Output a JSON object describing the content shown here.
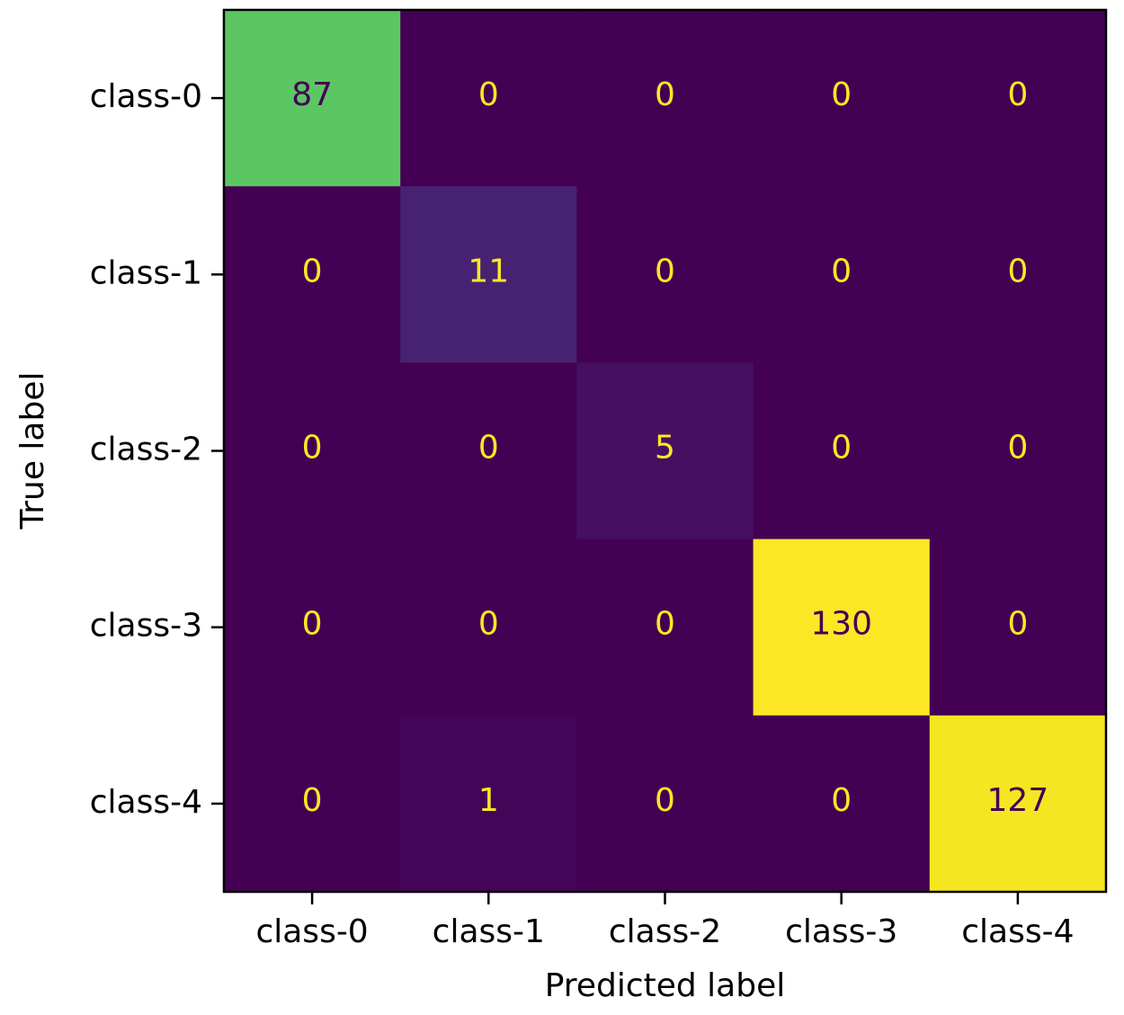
{
  "chart_data": {
    "type": "heatmap",
    "title": "",
    "xlabel": "Predicted label",
    "ylabel": "True label",
    "x_categories": [
      "class-0",
      "class-1",
      "class-2",
      "class-3",
      "class-4"
    ],
    "y_categories": [
      "class-0",
      "class-1",
      "class-2",
      "class-3",
      "class-4"
    ],
    "matrix": [
      [
        87,
        0,
        0,
        0,
        0
      ],
      [
        0,
        11,
        0,
        0,
        0
      ],
      [
        0,
        0,
        5,
        0,
        0
      ],
      [
        0,
        0,
        0,
        130,
        0
      ],
      [
        0,
        1,
        0,
        0,
        127
      ]
    ],
    "value_range": [
      0,
      130
    ],
    "colormap": "viridis",
    "grid": false,
    "colorbar": false
  }
}
